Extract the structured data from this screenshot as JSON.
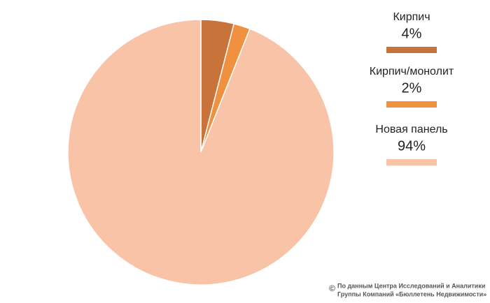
{
  "chart_data": {
    "type": "pie",
    "categories": [
      "Кирпич",
      "Кирпич/монолит",
      "Новая панель"
    ],
    "values": [
      4,
      2,
      94
    ],
    "value_labels": [
      "4%",
      "2%",
      "94%"
    ],
    "colors": [
      "#c8733a",
      "#f0913f",
      "#f9c3a8"
    ],
    "copyright": "©",
    "note": [
      "По данным Центра Исследований и Аналитики",
      "Группы Компаний «Бюллетень Недвижимости»"
    ]
  }
}
